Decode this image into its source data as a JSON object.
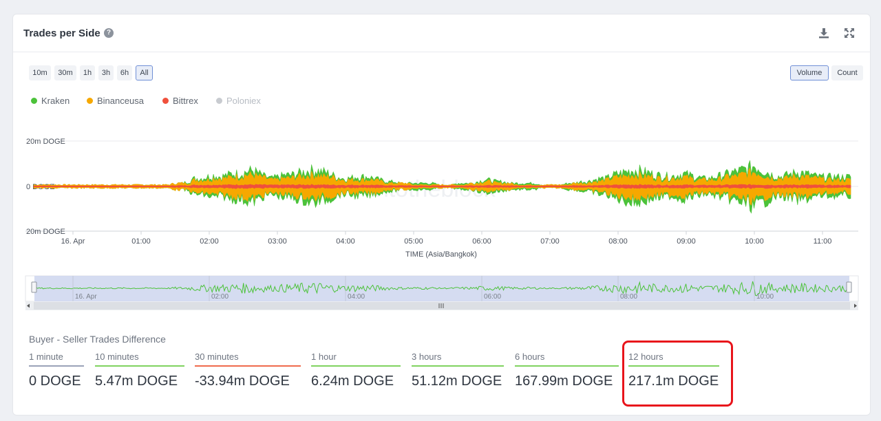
{
  "title": "Trades per Side",
  "help_icon": "?",
  "header_icons": [
    "download-icon",
    "expand-icon"
  ],
  "range_buttons": [
    {
      "label": "10m",
      "active": false
    },
    {
      "label": "30m",
      "active": false
    },
    {
      "label": "1h",
      "active": false
    },
    {
      "label": "3h",
      "active": false
    },
    {
      "label": "6h",
      "active": false
    },
    {
      "label": "All",
      "active": true
    }
  ],
  "mode_buttons": [
    {
      "label": "Volume",
      "active": true
    },
    {
      "label": "Count",
      "active": false
    }
  ],
  "legend": [
    {
      "name": "Kraken",
      "color": "#4cc23a",
      "enabled": true
    },
    {
      "name": "Binanceusa",
      "color": "#f6a800",
      "enabled": true
    },
    {
      "name": "Bittrex",
      "color": "#f0503c",
      "enabled": true
    },
    {
      "name": "Poloniex",
      "color": "#c8cbd0",
      "enabled": false
    }
  ],
  "watermark": "intotheblock",
  "chart_data": {
    "type": "area",
    "xlabel": "TIME (Asia/Bangkok)",
    "ylabel": "",
    "y_ticks": [
      "20m DOGE",
      "0 DOGE",
      "20m DOGE"
    ],
    "ylim": [
      -20,
      20
    ],
    "x_ticks": [
      "16. Apr",
      "01:00",
      "02:00",
      "03:00",
      "04:00",
      "05:00",
      "06:00",
      "07:00",
      "08:00",
      "09:00",
      "10:00",
      "11:00"
    ],
    "x_range": [
      "00:00",
      "11:25"
    ],
    "series": [
      {
        "name": "Kraken",
        "color": "#4cc23a",
        "envelope_m": [
          1,
          1,
          1,
          1,
          1,
          1,
          1,
          1,
          1,
          1,
          1,
          1,
          1,
          1,
          1,
          1,
          1,
          1,
          1,
          1,
          1,
          1,
          2,
          2,
          3,
          5,
          5,
          6,
          7,
          6,
          7,
          8,
          8,
          9,
          10,
          8,
          6,
          5,
          6,
          7,
          7,
          8,
          9,
          10,
          10,
          9,
          8,
          6,
          5,
          5,
          6,
          6,
          6,
          5,
          4,
          3,
          3,
          2,
          2,
          2,
          2,
          2,
          2,
          1,
          1,
          1,
          2,
          2,
          2,
          3,
          4,
          4,
          3,
          3,
          2,
          2,
          2,
          2,
          2,
          1,
          1,
          1,
          1,
          2,
          2,
          3,
          3,
          4,
          5,
          5,
          7,
          8,
          9,
          10,
          10,
          9,
          8,
          7,
          7,
          6,
          7,
          8,
          7,
          6,
          5,
          5,
          6,
          7,
          8,
          9,
          10,
          11,
          13,
          11,
          9,
          7,
          6,
          7,
          8,
          9,
          8,
          7,
          6,
          6,
          6,
          6,
          6,
          6
        ]
      },
      {
        "name": "Binanceusa",
        "color": "#f6a800",
        "envelope_m": [
          1,
          1,
          1,
          1,
          1,
          1,
          1,
          1,
          1,
          1,
          1,
          1,
          1,
          1,
          1,
          1,
          1,
          1,
          1,
          1,
          1,
          1,
          2,
          2,
          2,
          4,
          4,
          4,
          5,
          5,
          5,
          6,
          6,
          7,
          7,
          6,
          5,
          4,
          4,
          5,
          5,
          6,
          6,
          7,
          7,
          6,
          6,
          5,
          4,
          4,
          4,
          4,
          4,
          4,
          3,
          2,
          2,
          2,
          2,
          1,
          1,
          1,
          1,
          1,
          1,
          1,
          1,
          1,
          2,
          2,
          3,
          3,
          2,
          2,
          2,
          1,
          1,
          1,
          1,
          1,
          1,
          1,
          1,
          1,
          2,
          2,
          2,
          3,
          3,
          4,
          5,
          6,
          6,
          7,
          7,
          6,
          6,
          5,
          5,
          5,
          5,
          6,
          5,
          4,
          4,
          4,
          4,
          5,
          6,
          6,
          7,
          8,
          9,
          8,
          6,
          5,
          5,
          5,
          6,
          6,
          6,
          5,
          5,
          4,
          4,
          4,
          4,
          4
        ]
      },
      {
        "name": "Bittrex",
        "color": "#f0503c",
        "envelope_m": [
          0.3,
          0.3,
          0.3,
          0.3,
          0.3,
          0.3,
          0.3,
          0.3,
          0.3,
          0.3,
          0.3,
          0.3,
          0.3,
          0.3,
          0.3,
          0.3,
          0.3,
          0.3,
          0.3,
          0.3,
          0.3,
          0.3,
          0.5,
          0.5,
          0.5,
          0.8,
          0.8,
          0.8,
          0.9,
          0.9,
          0.9,
          1,
          1,
          1,
          1,
          1,
          0.9,
          0.8,
          0.8,
          0.9,
          0.9,
          0.9,
          1,
          1,
          1,
          0.9,
          0.9,
          0.8,
          0.8,
          0.8,
          0.8,
          0.8,
          0.8,
          0.8,
          0.6,
          0.5,
          0.5,
          0.5,
          0.5,
          0.4,
          0.4,
          0.4,
          0.4,
          0.4,
          0.4,
          0.4,
          0.4,
          0.4,
          0.5,
          0.5,
          0.6,
          0.6,
          0.5,
          0.5,
          0.5,
          0.4,
          0.4,
          0.4,
          0.4,
          0.4,
          0.4,
          0.4,
          0.4,
          0.4,
          0.5,
          0.5,
          0.5,
          0.6,
          0.6,
          0.7,
          0.8,
          0.9,
          0.9,
          1,
          1,
          0.9,
          0.9,
          0.8,
          0.8,
          0.8,
          0.8,
          0.9,
          0.8,
          0.7,
          0.7,
          0.7,
          0.7,
          0.8,
          0.9,
          0.9,
          1,
          1,
          1,
          1,
          0.9,
          0.8,
          0.8,
          0.8,
          0.9,
          0.9,
          0.9,
          0.8,
          0.8,
          0.7,
          0.7,
          0.7,
          0.7,
          0.7
        ]
      }
    ],
    "navigator_ticks": [
      "16. Apr",
      "02:00",
      "04:00",
      "06:00",
      "08:00",
      "10:00"
    ]
  },
  "stats": {
    "label": "Buyer - Seller Trades Difference",
    "items": [
      {
        "period": "1 minute",
        "value": "0 DOGE",
        "color": "#9aa2b8"
      },
      {
        "period": "10 minutes",
        "value": "5.47m DOGE",
        "color": "#7fd35f"
      },
      {
        "period": "30 minutes",
        "value": "-33.94m DOGE",
        "color": "#ef6a4c"
      },
      {
        "period": "1 hour",
        "value": "6.24m DOGE",
        "color": "#7fd35f"
      },
      {
        "period": "3 hours",
        "value": "51.12m DOGE",
        "color": "#7fd35f"
      },
      {
        "period": "6 hours",
        "value": "167.99m DOGE",
        "color": "#7fd35f"
      },
      {
        "period": "12 hours",
        "value": "217.1m DOGE",
        "color": "#7fd35f"
      }
    ]
  }
}
